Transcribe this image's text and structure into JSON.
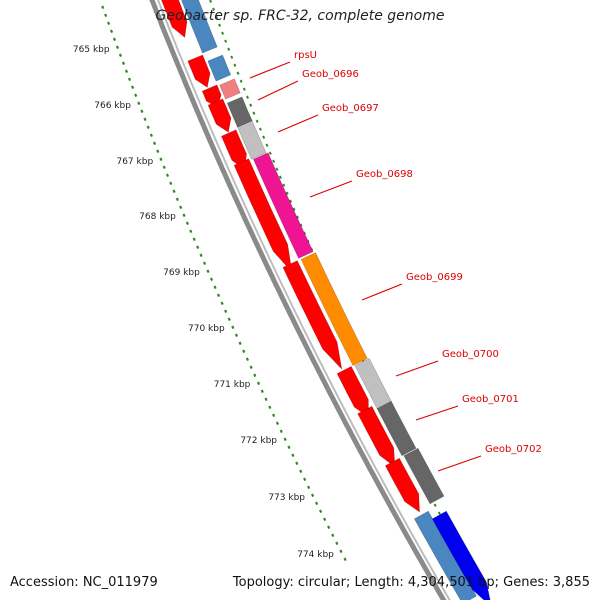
{
  "title": "Geobacter sp. FRC-32, complete genome",
  "footer": {
    "accession": "Accession: NC_011979",
    "topology": "Topology: circular; Length: 4,304,501 bp; Genes: 3,855"
  },
  "colors": {
    "backbone": "#888888",
    "tick": "#2e8b1e",
    "gene_label": "#dd0000",
    "forward_gene": "#ff0000",
    "reverse_gene": "#3377aa"
  },
  "scale_labels": [
    "765 kbp",
    "766 kbp",
    "767 kbp",
    "768 kbp",
    "769 kbp",
    "770 kbp",
    "771 kbp",
    "772 kbp",
    "773 kbp",
    "774 kbp"
  ],
  "gene_labels": [
    "rpsU",
    "Geob_0696",
    "Geob_0697",
    "Geob_0698",
    "Geob_0699",
    "Geob_0700",
    "Geob_0701",
    "Geob_0702"
  ]
}
